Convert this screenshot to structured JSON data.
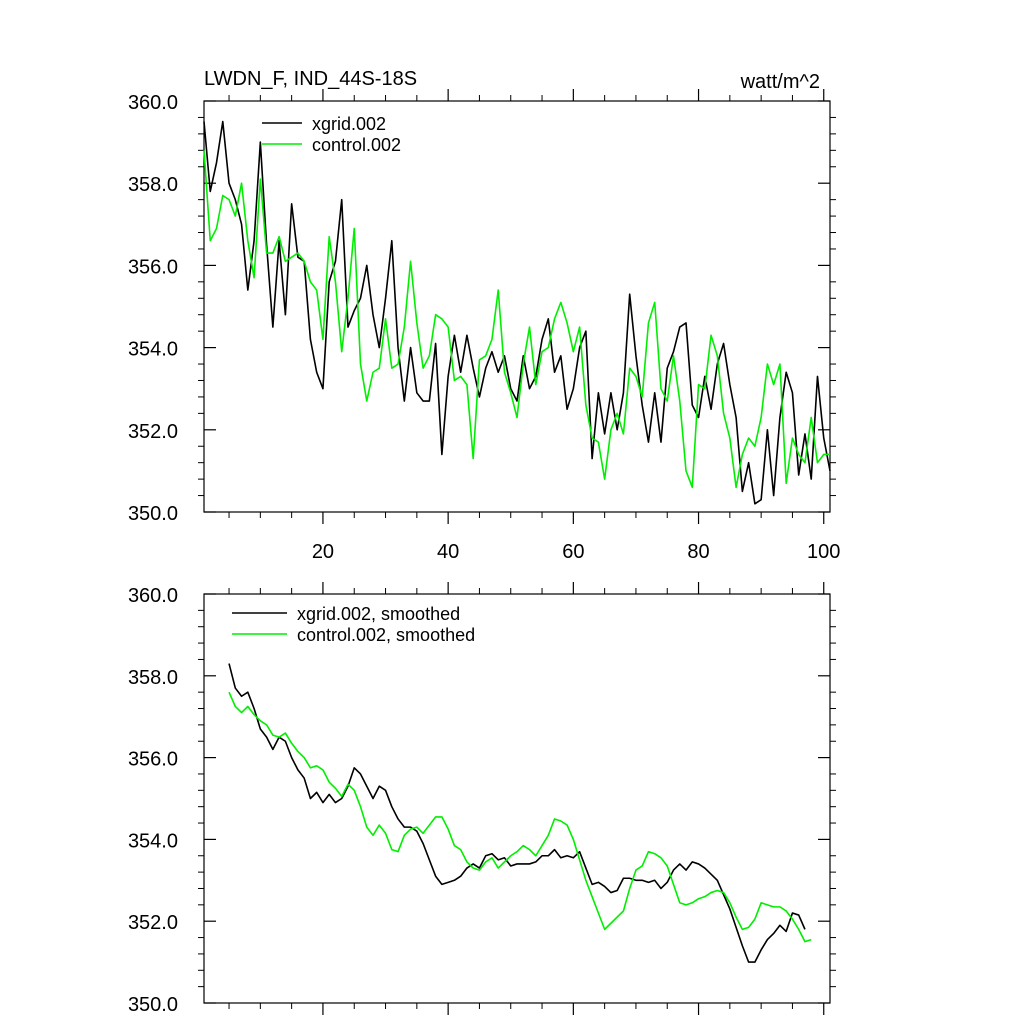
{
  "header": {
    "title": "LWDN_F, IND_44S-18S",
    "units": "watt/m^2"
  },
  "colors": {
    "xgrid": "#000000",
    "control": "#00ee00",
    "axis": "#000000",
    "background": "#ffffff"
  },
  "chart_data": [
    {
      "type": "line",
      "panel": "top",
      "xlim": [
        1,
        101
      ],
      "ylim": [
        350,
        360
      ],
      "x_ticks": [
        20,
        40,
        60,
        80,
        100
      ],
      "x_tick_labels": [
        "20",
        "40",
        "60",
        "80",
        "100"
      ],
      "y_ticks": [
        350,
        352,
        354,
        356,
        358,
        360
      ],
      "y_tick_labels": [
        "350.0",
        "352.0",
        "354.0",
        "356.0",
        "358.0",
        "360.0"
      ],
      "legend_position": "top-left",
      "series": [
        {
          "name": "xgrid.002",
          "key": "xgrid",
          "values": [
            359.5,
            357.8,
            358.5,
            359.5,
            358.0,
            357.6,
            357.0,
            355.4,
            356.6,
            359.0,
            356.5,
            354.5,
            356.6,
            354.8,
            357.5,
            356.2,
            356.1,
            354.2,
            353.4,
            353.0,
            355.6,
            356.1,
            357.6,
            354.5,
            354.9,
            355.2,
            356.0,
            354.8,
            354.0,
            355.2,
            356.6,
            354.0,
            352.7,
            354.0,
            352.9,
            352.7,
            352.7,
            354.1,
            351.4,
            353.3,
            354.3,
            353.4,
            354.3,
            353.5,
            352.8,
            353.5,
            353.9,
            353.4,
            353.8,
            353.0,
            352.7,
            353.8,
            353.0,
            353.3,
            354.2,
            354.7,
            353.4,
            353.8,
            352.5,
            353.0,
            354.0,
            354.4,
            351.3,
            352.9,
            351.9,
            352.9,
            352.0,
            352.9,
            355.3,
            353.8,
            352.6,
            351.7,
            352.9,
            351.7,
            353.5,
            353.9,
            354.5,
            354.6,
            352.6,
            352.3,
            353.3,
            352.5,
            353.6,
            354.1,
            353.1,
            352.3,
            350.5,
            351.2,
            350.2,
            350.3,
            352.0,
            350.4,
            352.3,
            353.4,
            352.9,
            350.9,
            351.9,
            350.8,
            353.3,
            351.8,
            351.0
          ]
        },
        {
          "name": "control.002",
          "key": "control",
          "values": [
            358.8,
            356.6,
            356.9,
            357.7,
            357.6,
            357.2,
            358.0,
            356.6,
            355.7,
            358.1,
            356.3,
            356.3,
            356.7,
            356.1,
            356.2,
            356.3,
            356.1,
            355.6,
            355.4,
            354.2,
            356.7,
            355.6,
            353.9,
            355.2,
            356.9,
            353.6,
            352.7,
            353.4,
            353.5,
            354.7,
            353.5,
            353.6,
            354.5,
            356.1,
            354.6,
            353.5,
            353.8,
            354.8,
            354.7,
            354.5,
            353.2,
            353.3,
            353.1,
            351.3,
            353.7,
            353.8,
            354.2,
            355.4,
            353.4,
            352.9,
            352.3,
            353.6,
            354.5,
            353.1,
            353.9,
            354.0,
            354.7,
            355.1,
            354.6,
            353.9,
            354.5,
            352.6,
            351.8,
            351.7,
            350.8,
            352.0,
            352.4,
            351.9,
            353.5,
            353.3,
            352.8,
            354.6,
            355.1,
            353.0,
            352.7,
            353.8,
            352.7,
            351.0,
            350.6,
            353.1,
            353.0,
            354.3,
            353.8,
            352.4,
            351.8,
            350.6,
            351.4,
            351.8,
            351.6,
            352.3,
            353.6,
            353.1,
            353.6,
            350.7,
            351.8,
            351.4,
            351.2,
            352.3,
            351.2,
            351.4,
            351.4
          ]
        }
      ]
    },
    {
      "type": "line",
      "panel": "bottom",
      "xlim": [
        1,
        101
      ],
      "ylim": [
        350,
        360
      ],
      "y_ticks": [
        350,
        352,
        354,
        356,
        358,
        360
      ],
      "y_tick_labels": [
        "350.0",
        "352.0",
        "354.0",
        "356.0",
        "358.0",
        "360.0"
      ],
      "legend_position": "top-left",
      "series": [
        {
          "name": "xgrid.002, smoothed",
          "key": "xgrid",
          "x_start": 5,
          "values": [
            358.3,
            357.7,
            357.5,
            357.6,
            357.2,
            356.7,
            356.5,
            356.2,
            356.5,
            356.4,
            356.0,
            355.7,
            355.5,
            355.0,
            355.15,
            354.9,
            355.1,
            354.9,
            355.0,
            355.3,
            355.75,
            355.6,
            355.3,
            355.0,
            355.3,
            355.2,
            354.8,
            354.5,
            354.3,
            354.3,
            354.2,
            353.9,
            353.5,
            353.1,
            352.9,
            352.95,
            353.0,
            353.1,
            353.3,
            353.4,
            353.3,
            353.6,
            353.65,
            353.5,
            353.55,
            353.35,
            353.4,
            353.4,
            353.4,
            353.45,
            353.6,
            353.6,
            353.75,
            353.55,
            353.6,
            353.55,
            353.7,
            353.3,
            352.9,
            352.95,
            352.85,
            352.7,
            352.75,
            353.05,
            353.05,
            353.0,
            353.0,
            352.95,
            353.0,
            352.8,
            352.95,
            353.25,
            353.4,
            353.25,
            353.45,
            353.4,
            353.3,
            353.15,
            353.0,
            352.65,
            352.3,
            351.85,
            351.4,
            351.0,
            351.0,
            351.3,
            351.55,
            351.7,
            351.9,
            351.75,
            352.2,
            352.15,
            351.8
          ]
        },
        {
          "name": "control.002, smoothed",
          "key": "control",
          "x_start": 5,
          "values": [
            357.6,
            357.25,
            357.1,
            357.25,
            357.05,
            356.9,
            356.8,
            356.55,
            356.5,
            356.6,
            356.35,
            356.15,
            356.0,
            355.75,
            355.8,
            355.7,
            355.4,
            355.25,
            355.05,
            355.35,
            355.2,
            354.8,
            354.3,
            354.1,
            354.35,
            354.15,
            353.75,
            353.7,
            354.1,
            354.25,
            354.3,
            354.15,
            354.35,
            354.55,
            354.55,
            354.25,
            353.85,
            353.75,
            353.45,
            353.3,
            353.25,
            353.45,
            353.55,
            353.3,
            353.45,
            353.6,
            353.7,
            353.85,
            353.75,
            353.6,
            353.85,
            354.1,
            354.5,
            354.45,
            354.35,
            354.0,
            353.5,
            353.0,
            352.6,
            352.2,
            351.8,
            351.95,
            352.1,
            352.25,
            352.8,
            353.25,
            353.35,
            353.7,
            353.65,
            353.55,
            353.35,
            352.9,
            352.45,
            352.4,
            352.45,
            352.55,
            352.6,
            352.7,
            352.75,
            352.7,
            352.45,
            352.1,
            351.8,
            351.85,
            352.05,
            352.45,
            352.4,
            352.35,
            352.35,
            352.25,
            352.05,
            351.8,
            351.5,
            351.55
          ]
        }
      ]
    }
  ]
}
